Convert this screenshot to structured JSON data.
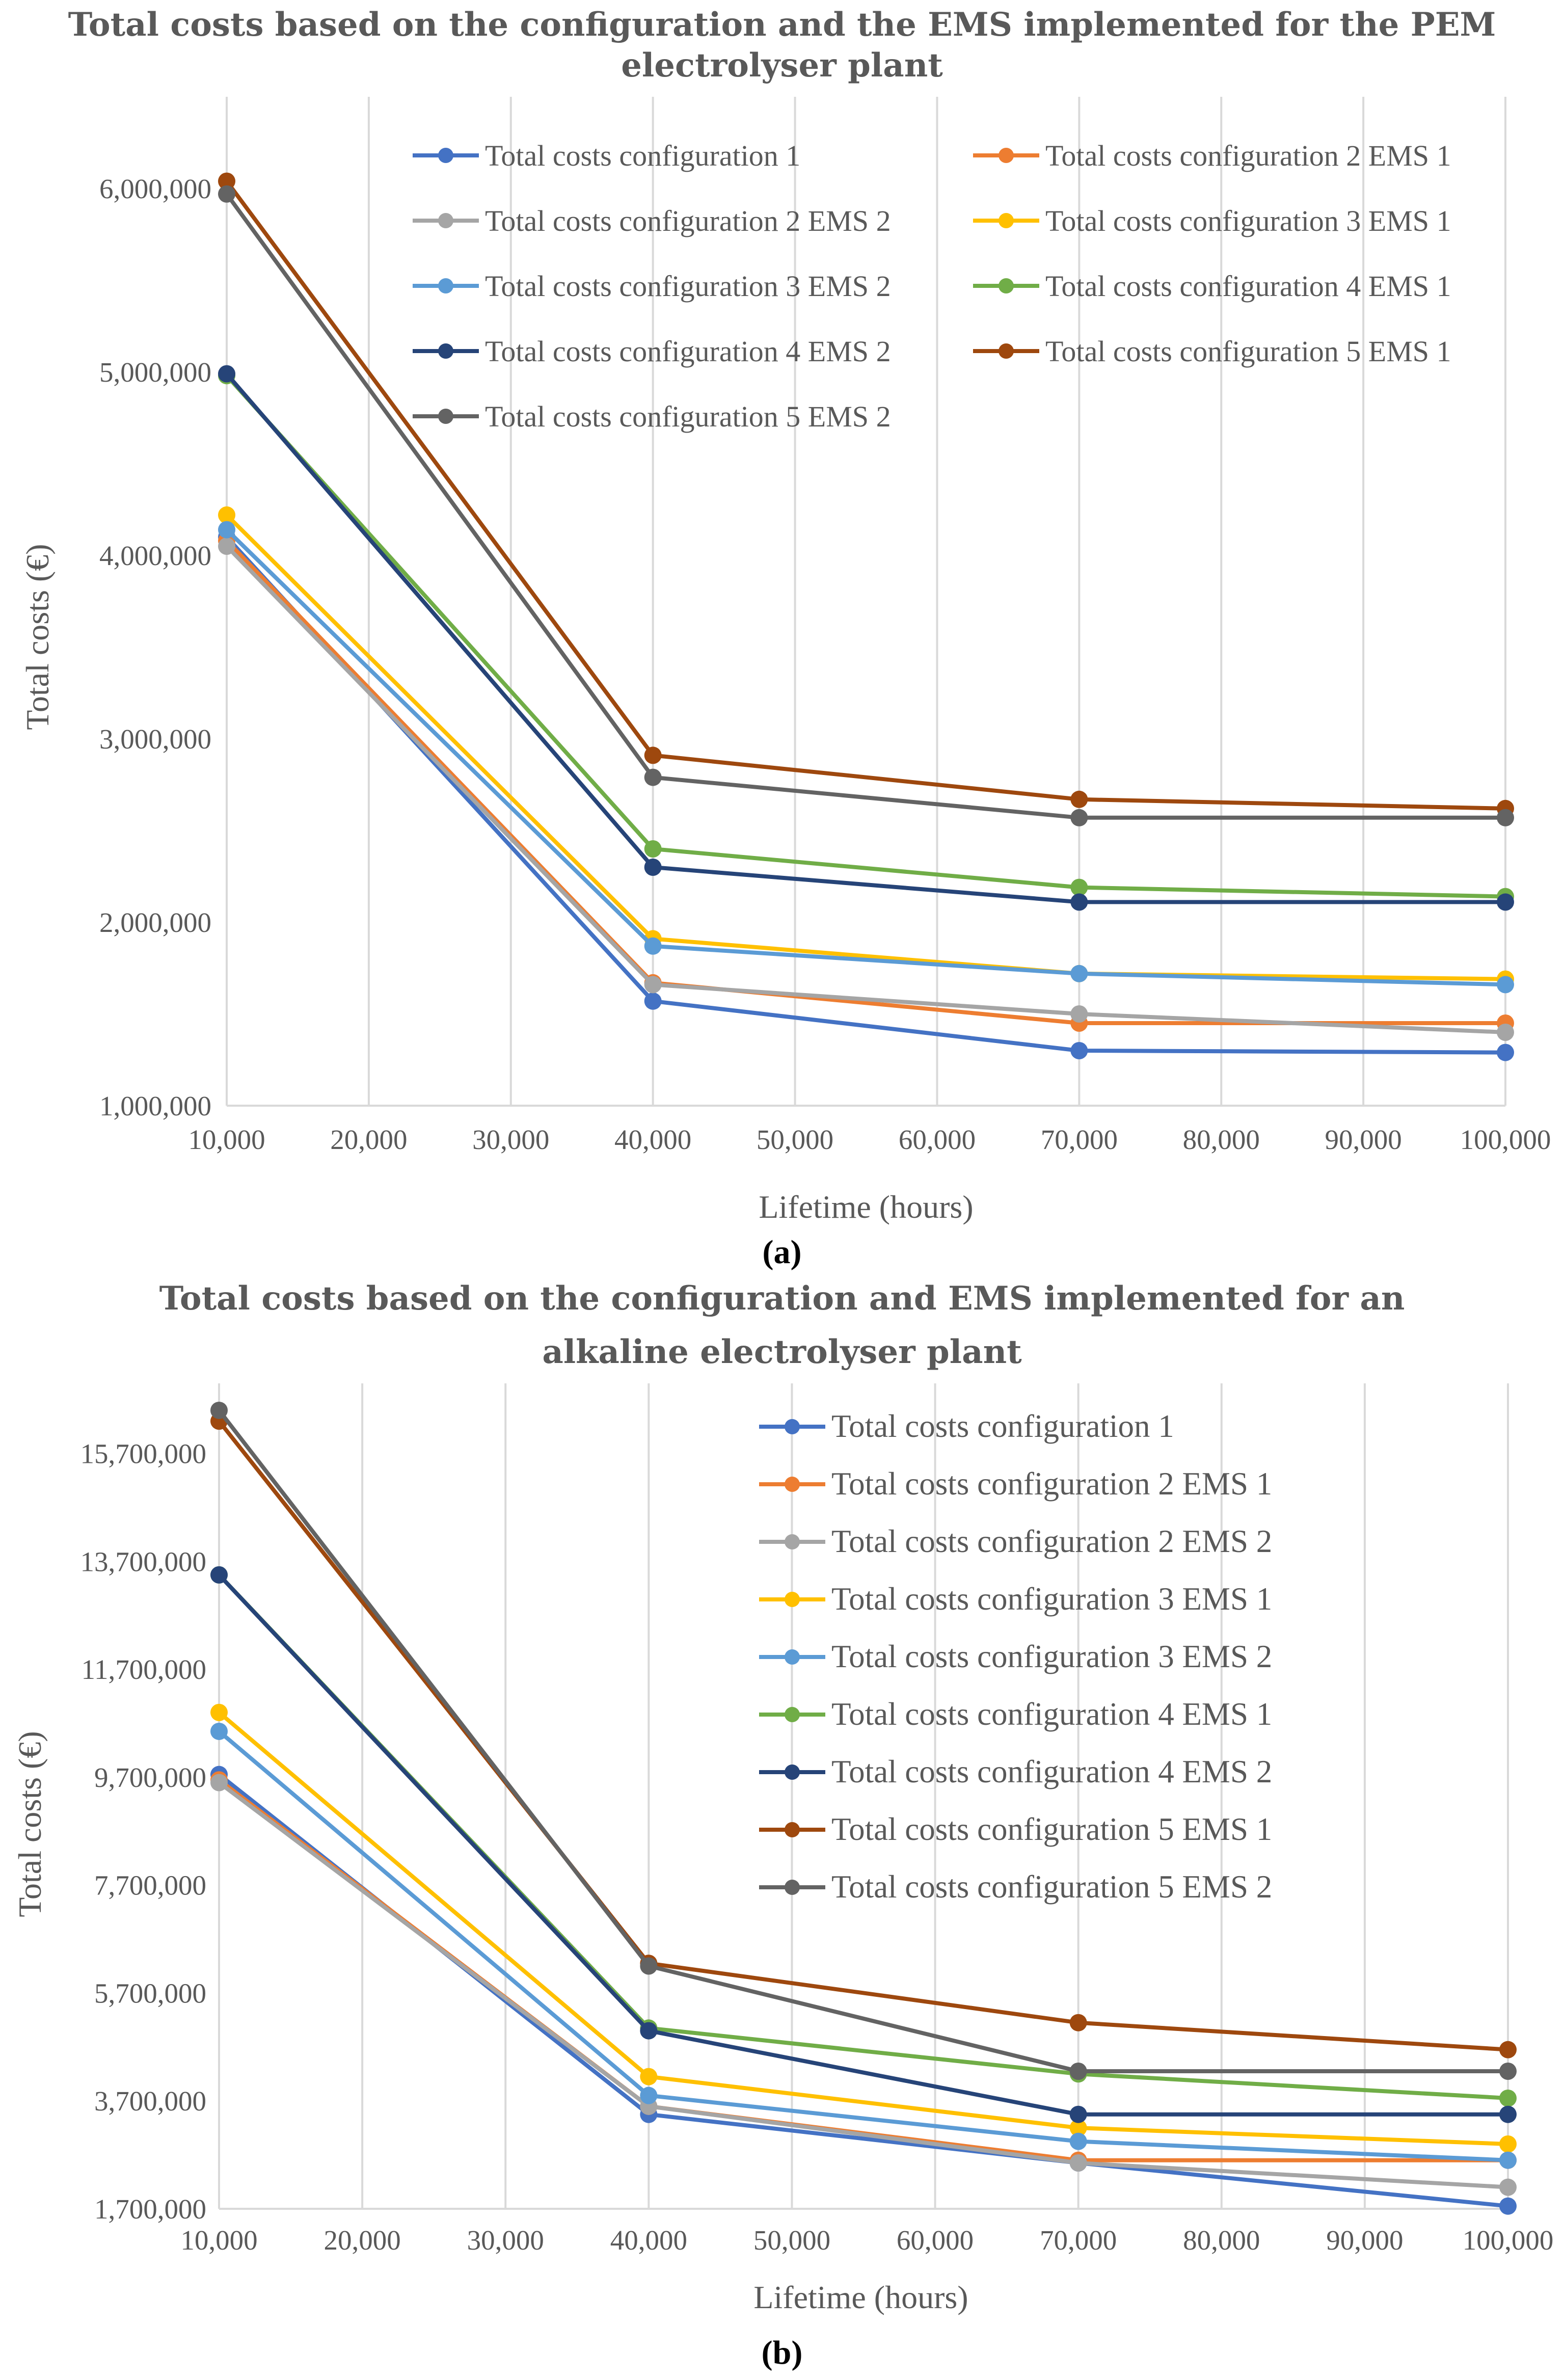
{
  "chart_data": [
    {
      "type": "line",
      "id": "a",
      "title_lines": [
        "Total costs based on the configuration and the EMS implemented  for the PEM",
        "electrolyser  plant"
      ],
      "xlabel": "Lifetime (hours)",
      "ylabel": "Total costs (€)",
      "x": [
        10000,
        40000,
        70000,
        100000
      ],
      "xlim": [
        10000,
        100000
      ],
      "xticks": [
        10000,
        20000,
        30000,
        40000,
        50000,
        60000,
        70000,
        80000,
        90000,
        100000
      ],
      "xtick_labels": [
        "10,000",
        "20,000",
        "30,000",
        "40,000",
        "50,000",
        "60,000",
        "70,000",
        "80,000",
        "90,000",
        "100,000"
      ],
      "ylim": [
        1000000,
        6500000
      ],
      "yticks": [
        1000000,
        2000000,
        3000000,
        4000000,
        5000000,
        6000000
      ],
      "ytick_labels": [
        "1,000,000",
        "2,000,000",
        "3,000,000",
        "4,000,000",
        "5,000,000",
        "6,000,000"
      ],
      "grid": "vertical",
      "legend_position": "top-right, two columns",
      "series": [
        {
          "name": "Total costs configuration 1",
          "color": "#4472C4",
          "values": [
            4100000,
            1570000,
            1300000,
            1290000
          ]
        },
        {
          "name": "Total costs configuration 2 EMS 1",
          "color": "#ED7D31",
          "values": [
            4080000,
            1670000,
            1450000,
            1450000
          ]
        },
        {
          "name": "Total costs configuration 2 EMS 2",
          "color": "#A5A5A5",
          "values": [
            4050000,
            1660000,
            1500000,
            1400000
          ]
        },
        {
          "name": "Total costs configuration 3 EMS 1",
          "color": "#FFC000",
          "values": [
            4220000,
            1910000,
            1720000,
            1690000
          ]
        },
        {
          "name": "Total costs configuration 3 EMS 2",
          "color": "#5B9BD5",
          "values": [
            4140000,
            1870000,
            1720000,
            1660000
          ]
        },
        {
          "name": "Total costs configuration 4 EMS 1",
          "color": "#70AD47",
          "values": [
            4980000,
            2400000,
            2190000,
            2140000
          ]
        },
        {
          "name": "Total costs configuration 4 EMS 2",
          "color": "#264478",
          "values": [
            4990000,
            2300000,
            2110000,
            2110000
          ]
        },
        {
          "name": "Total costs configuration 5 EMS 1",
          "color": "#9E480E",
          "values": [
            6040000,
            2910000,
            2670000,
            2620000
          ]
        },
        {
          "name": "Total costs configuration 5 EMS 2",
          "color": "#636363",
          "values": [
            5970000,
            2790000,
            2570000,
            2570000
          ]
        }
      ]
    },
    {
      "type": "line",
      "id": "b",
      "title_lines": [
        "Total costs based on the configuration and EMS implemented  for an",
        "alkaline  electrolyser  plant"
      ],
      "xlabel": "Lifetime (hours)",
      "ylabel": "Total costs (€)",
      "x": [
        10000,
        40000,
        70000,
        100000
      ],
      "xlim": [
        10000,
        100000
      ],
      "xticks": [
        10000,
        20000,
        30000,
        40000,
        50000,
        60000,
        70000,
        80000,
        90000,
        100000
      ],
      "xtick_labels": [
        "10,000",
        "20,000",
        "30,000",
        "40,000",
        "50,000",
        "60,000",
        "70,000",
        "80,000",
        "90,000",
        "100,000"
      ],
      "ylim": [
        1700000,
        17000000
      ],
      "yticks": [
        1700000,
        3700000,
        5700000,
        7700000,
        9700000,
        11700000,
        13700000,
        15700000
      ],
      "ytick_labels": [
        "1,700,000",
        "3,700,000",
        "5,700,000",
        "7,700,000",
        "9,700,000",
        "11,700,000",
        "13,700,000",
        "15,700,000"
      ],
      "grid": "vertical",
      "legend_position": "top-right, one column",
      "series": [
        {
          "name": "Total costs configuration 1",
          "color": "#4472C4",
          "values": [
            9750000,
            3450000,
            2550000,
            1750000
          ]
        },
        {
          "name": "Total costs configuration 2 EMS 1",
          "color": "#ED7D31",
          "values": [
            9650000,
            3600000,
            2600000,
            2600000
          ]
        },
        {
          "name": "Total costs configuration 2 EMS 2",
          "color": "#A5A5A5",
          "values": [
            9600000,
            3600000,
            2550000,
            2100000
          ]
        },
        {
          "name": "Total costs configuration 3 EMS 1",
          "color": "#FFC000",
          "values": [
            10900000,
            4150000,
            3200000,
            2900000
          ]
        },
        {
          "name": "Total costs configuration 3 EMS 2",
          "color": "#5B9BD5",
          "values": [
            10550000,
            3800000,
            2950000,
            2600000
          ]
        },
        {
          "name": "Total costs configuration 4 EMS 1",
          "color": "#70AD47",
          "values": [
            13450000,
            5050000,
            4200000,
            3750000
          ]
        },
        {
          "name": "Total costs configuration 4 EMS 2",
          "color": "#264478",
          "values": [
            13450000,
            5000000,
            3450000,
            3450000
          ]
        },
        {
          "name": "Total costs configuration 5 EMS 1",
          "color": "#9E480E",
          "values": [
            16300000,
            6250000,
            5150000,
            4650000
          ]
        },
        {
          "name": "Total costs configuration 5 EMS 2",
          "color": "#636363",
          "values": [
            16500000,
            6200000,
            4250000,
            4250000
          ]
        }
      ]
    }
  ],
  "captions": {
    "a": "(a)",
    "b": "(b)"
  }
}
